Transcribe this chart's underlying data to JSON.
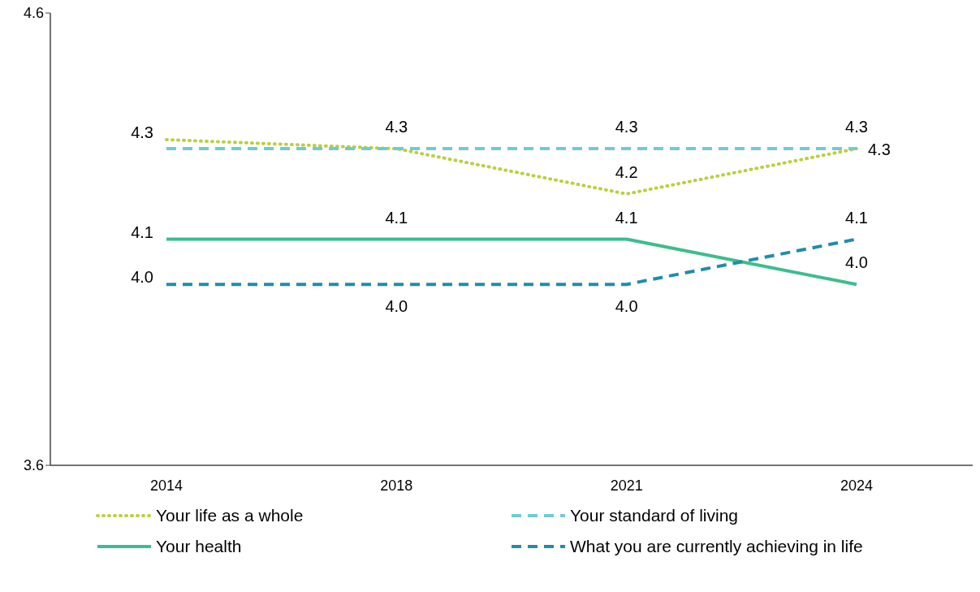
{
  "chart_data": {
    "type": "line",
    "categories": [
      "2014",
      "2018",
      "2021",
      "2024"
    ],
    "series": [
      {
        "name": "Your life as a whole",
        "color": "#bccf3f",
        "line_style": "dotted",
        "values": [
          4.32,
          4.3,
          4.2,
          4.3
        ],
        "value_labels": [
          "4.3",
          null,
          "4.2",
          "4.3"
        ]
      },
      {
        "name": "Your standard of living",
        "color": "#6fcad6",
        "line_style": "dashed",
        "values": [
          4.3,
          4.3,
          4.3,
          4.3
        ],
        "value_labels": [
          null,
          "4.3",
          "4.3",
          "4.3"
        ]
      },
      {
        "name": "Your health",
        "color": "#3dbd8e",
        "line_style": "solid",
        "values": [
          4.1,
          4.1,
          4.1,
          4.0
        ],
        "value_labels": [
          "4.1",
          "4.1",
          "4.1",
          "4.0"
        ]
      },
      {
        "name": "What you are currently achieving in life",
        "color": "#1f8dab",
        "line_style": "dashed",
        "values": [
          4.0,
          4.0,
          4.0,
          4.1
        ],
        "value_labels": [
          "4.0",
          "4.0",
          "4.0",
          "4.1"
        ]
      }
    ],
    "ylim": [
      3.6,
      4.6
    ],
    "yticks": [
      3.6,
      4.6
    ],
    "grid": false,
    "legend": "bottom",
    "marker": "none"
  }
}
